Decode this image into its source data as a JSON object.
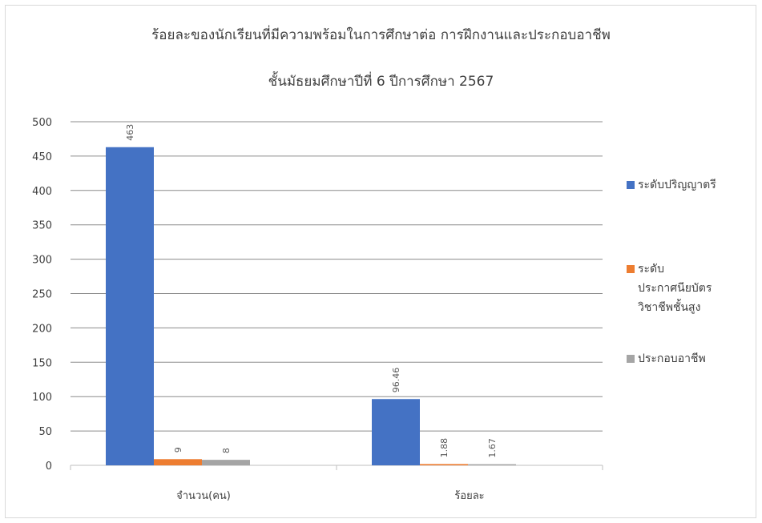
{
  "chart_data": {
    "type": "bar",
    "title": "ร้อยละของนักเรียนที่มีความพร้อมในการศึกษาต่อ การฝึกงานและประกอบอาชีพ",
    "subtitle": "ชั้นมัธยมศึกษาปีที่ 6 ปีการศึกษา 2567",
    "categories": [
      "จำนวน(คน)",
      "ร้อยละ"
    ],
    "series": [
      {
        "name": "ระดับปริญญาตรี",
        "color": "#4472C4",
        "values": [
          463,
          96.46
        ],
        "labels": [
          "463",
          "96.46"
        ]
      },
      {
        "name": "ระดับประกาศนียบัตรวิชาชีพชั้นสูง",
        "color": "#ED7D31",
        "values": [
          9,
          1.88
        ],
        "labels": [
          "9",
          "1.88"
        ]
      },
      {
        "name": "ประกอบอาชีพ",
        "color": "#A5A5A5",
        "values": [
          8,
          1.67
        ],
        "labels": [
          "8",
          "1.67"
        ]
      }
    ],
    "yticks": [
      "0",
      "50",
      "100",
      "150",
      "200",
      "250",
      "300",
      "350",
      "400",
      "450",
      "500"
    ],
    "ylim": [
      0,
      500
    ],
    "grid": true,
    "legend": "right",
    "xlabel": "",
    "ylabel": ""
  }
}
